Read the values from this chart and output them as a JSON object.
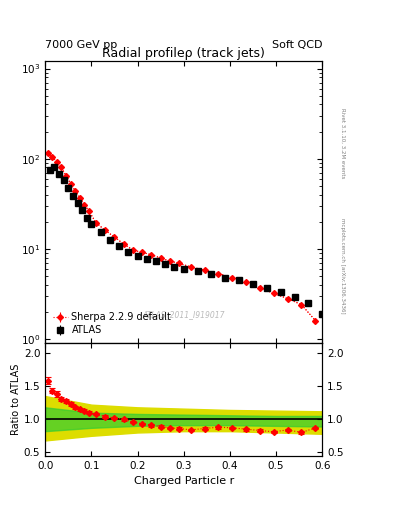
{
  "title": "Radial profileρ (track jets)",
  "top_left_label": "7000 GeV pp",
  "top_right_label": "Soft QCD",
  "watermark": "ATLAS_2011_I919017",
  "right_label_top": "Rivet 3.1.10, 3.2M events",
  "right_label_bottom": "mcplots.cern.ch [arXiv:1306.3436]",
  "xlabel": "Charged Particle r",
  "ylabel_ratio": "Ratio to ATLAS",
  "atlas_x": [
    0.01,
    0.02,
    0.03,
    0.04,
    0.05,
    0.06,
    0.07,
    0.08,
    0.09,
    0.1,
    0.12,
    0.14,
    0.16,
    0.18,
    0.2,
    0.22,
    0.24,
    0.26,
    0.28,
    0.3,
    0.33,
    0.36,
    0.39,
    0.42,
    0.45,
    0.48,
    0.51,
    0.54,
    0.57,
    0.6
  ],
  "atlas_y": [
    75,
    80,
    68,
    58,
    47,
    39,
    32,
    27,
    22,
    19,
    15.5,
    12.5,
    10.8,
    9.3,
    8.3,
    7.8,
    7.3,
    6.8,
    6.3,
    6.0,
    5.6,
    5.2,
    4.8,
    4.5,
    4.1,
    3.7,
    3.3,
    2.9,
    2.5,
    1.9
  ],
  "atlas_yerr": [
    3,
    3,
    3,
    2.5,
    2,
    1.5,
    1.2,
    1.0,
    0.8,
    0.7,
    0.6,
    0.5,
    0.4,
    0.35,
    0.3,
    0.28,
    0.25,
    0.22,
    0.2,
    0.18,
    0.16,
    0.14,
    0.13,
    0.12,
    0.11,
    0.1,
    0.09,
    0.08,
    0.08,
    0.07
  ],
  "sherpa_x": [
    0.005,
    0.015,
    0.025,
    0.035,
    0.045,
    0.055,
    0.065,
    0.075,
    0.085,
    0.095,
    0.11,
    0.13,
    0.15,
    0.17,
    0.19,
    0.21,
    0.23,
    0.25,
    0.27,
    0.29,
    0.315,
    0.345,
    0.375,
    0.405,
    0.435,
    0.465,
    0.495,
    0.525,
    0.555,
    0.585
  ],
  "sherpa_y": [
    115,
    105,
    92,
    80,
    65,
    53,
    44,
    37,
    31,
    26,
    19.5,
    16,
    13.5,
    11.3,
    9.7,
    9.1,
    8.6,
    7.9,
    7.3,
    6.9,
    6.3,
    5.8,
    5.3,
    4.8,
    4.3,
    3.7,
    3.2,
    2.8,
    2.4,
    1.6
  ],
  "sherpa_yerr": [
    2,
    2,
    1.5,
    1.2,
    1.0,
    0.8,
    0.6,
    0.5,
    0.4,
    0.35,
    0.28,
    0.22,
    0.18,
    0.15,
    0.12,
    0.11,
    0.1,
    0.09,
    0.08,
    0.07,
    0.06,
    0.06,
    0.05,
    0.05,
    0.04,
    0.04,
    0.04,
    0.03,
    0.03,
    0.03
  ],
  "ratio_x": [
    0.005,
    0.015,
    0.025,
    0.035,
    0.045,
    0.055,
    0.065,
    0.075,
    0.085,
    0.095,
    0.11,
    0.13,
    0.15,
    0.17,
    0.19,
    0.21,
    0.23,
    0.25,
    0.27,
    0.29,
    0.315,
    0.345,
    0.375,
    0.405,
    0.435,
    0.465,
    0.495,
    0.525,
    0.555,
    0.585
  ],
  "ratio_y": [
    1.58,
    1.43,
    1.38,
    1.3,
    1.28,
    1.23,
    1.18,
    1.15,
    1.13,
    1.1,
    1.08,
    1.04,
    1.02,
    1.0,
    0.96,
    0.93,
    0.91,
    0.89,
    0.87,
    0.86,
    0.84,
    0.86,
    0.88,
    0.87,
    0.85,
    0.83,
    0.81,
    0.84,
    0.8,
    0.87
  ],
  "ratio_yerr": [
    0.05,
    0.04,
    0.04,
    0.03,
    0.03,
    0.03,
    0.02,
    0.02,
    0.02,
    0.02,
    0.02,
    0.02,
    0.02,
    0.02,
    0.02,
    0.02,
    0.02,
    0.02,
    0.02,
    0.02,
    0.02,
    0.02,
    0.02,
    0.02,
    0.02,
    0.02,
    0.02,
    0.02,
    0.02,
    0.02
  ],
  "yellow_band_x": [
    0.0,
    0.1,
    0.2,
    0.3,
    0.4,
    0.5,
    0.6
  ],
  "yellow_band_ylow": [
    0.68,
    0.75,
    0.8,
    0.82,
    0.82,
    0.8,
    0.78
  ],
  "yellow_band_yhigh": [
    1.35,
    1.22,
    1.18,
    1.16,
    1.14,
    1.13,
    1.12
  ],
  "green_band_x": [
    0.0,
    0.1,
    0.2,
    0.3,
    0.4,
    0.5,
    0.6
  ],
  "green_band_ylow": [
    0.82,
    0.87,
    0.9,
    0.91,
    0.91,
    0.9,
    0.89
  ],
  "green_band_yhigh": [
    1.18,
    1.1,
    1.08,
    1.07,
    1.06,
    1.05,
    1.05
  ],
  "xlim": [
    0.0,
    0.6
  ],
  "ylim_main": [
    0.9,
    1200.0
  ],
  "ylim_ratio": [
    0.45,
    2.15
  ],
  "ratio_yticks": [
    0.5,
    1.0,
    1.5,
    2.0
  ],
  "background_color": "#ffffff",
  "atlas_color": "#000000",
  "sherpa_color": "#ff0000",
  "green_band_color": "#33cc33",
  "yellow_band_color": "#dddd00"
}
